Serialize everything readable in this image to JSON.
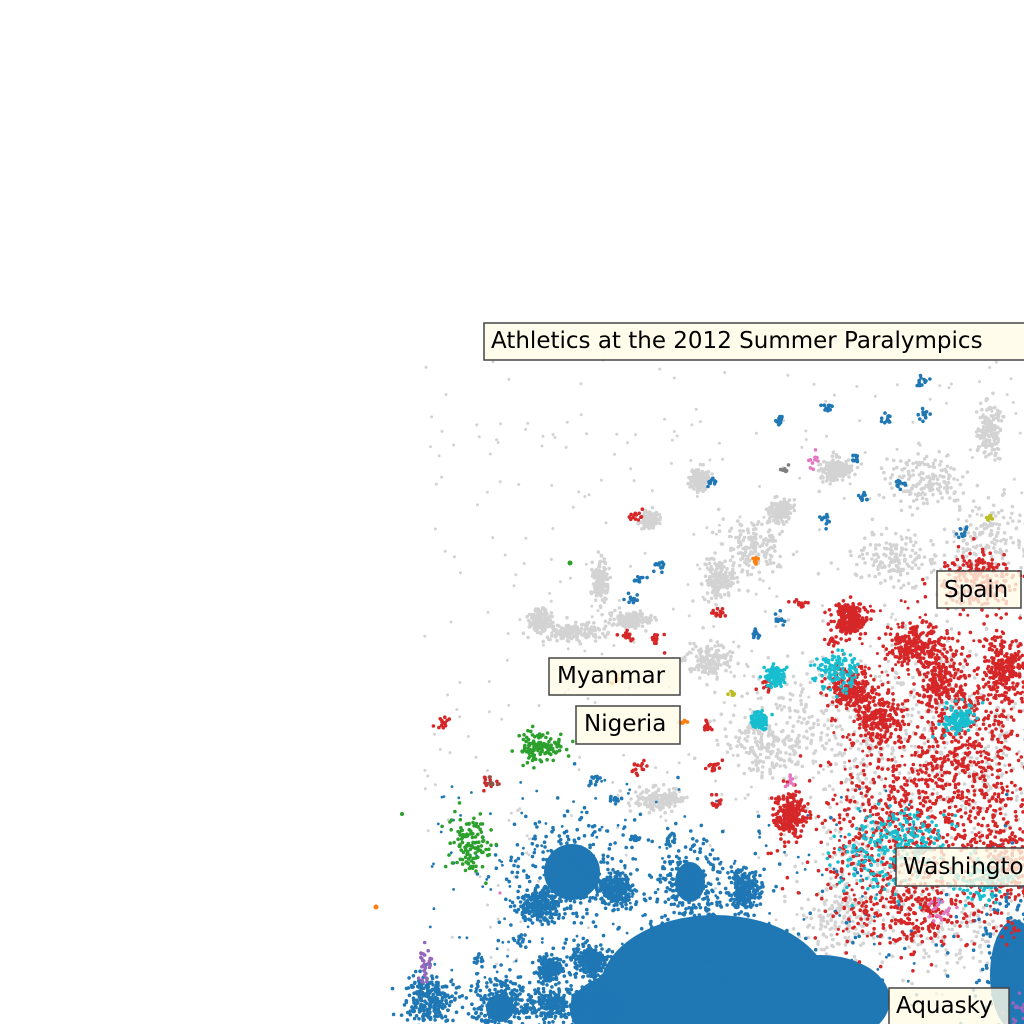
{
  "chart_data": {
    "type": "scatter",
    "title": "",
    "xlabel": "",
    "ylabel": "",
    "axes_visible": false,
    "grid": false,
    "legend": "none",
    "series": [
      {
        "color": "#d3d3d3",
        "role": "background"
      },
      {
        "color": "#1f77b4"
      },
      {
        "color": "#d62728"
      },
      {
        "color": "#17becf"
      },
      {
        "color": "#2ca02c"
      },
      {
        "color": "#ff7f0e"
      },
      {
        "color": "#9467bd"
      },
      {
        "color": "#e377c2"
      },
      {
        "color": "#bcbd22"
      },
      {
        "color": "#7f7f7f"
      },
      {
        "color": "#8c564b"
      }
    ],
    "annotations": [
      {
        "id": "athletics",
        "text": "Athletics at the 2012 Summer Paralympics"
      },
      {
        "id": "spain",
        "text": "Spain"
      },
      {
        "id": "myanmar",
        "text": "Myanmar"
      },
      {
        "id": "nigeria",
        "text": "Nigeria"
      },
      {
        "id": "washington",
        "text": "Washington"
      },
      {
        "id": "aquasky",
        "text": "Aquasky"
      }
    ]
  }
}
